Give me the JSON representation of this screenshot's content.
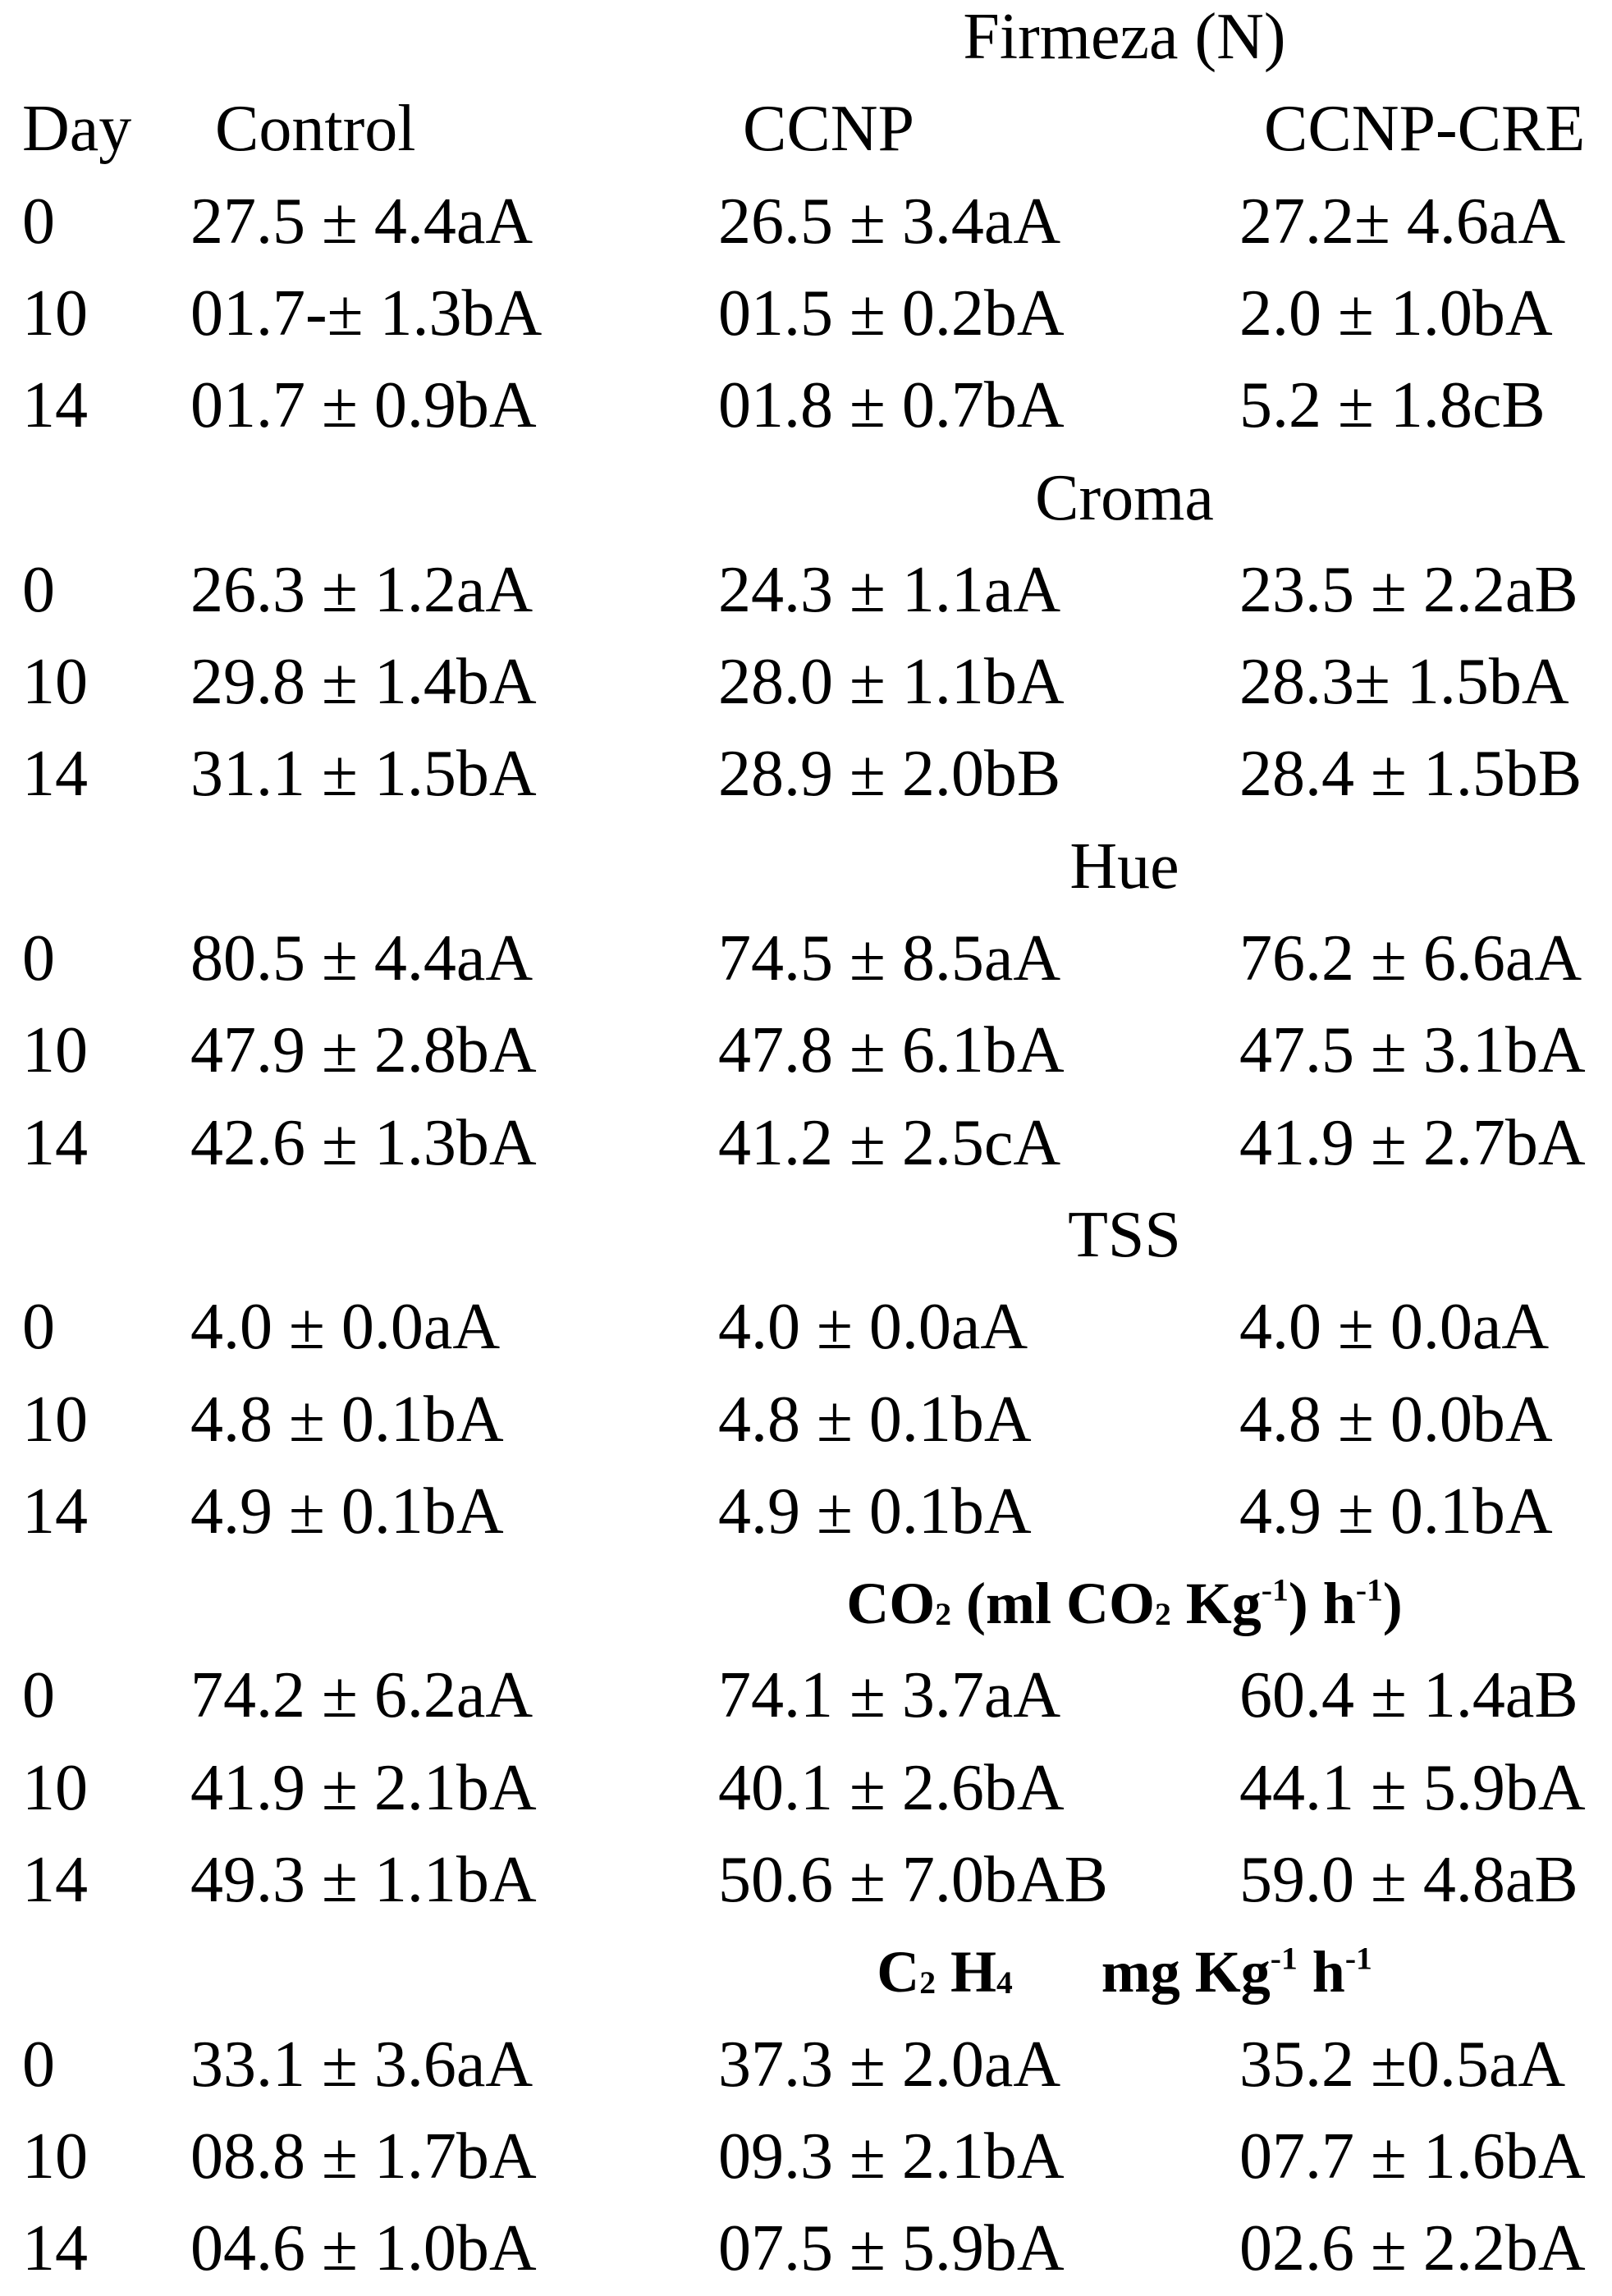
{
  "columns": [
    "Day",
    "Control",
    "CCNP",
    "CCNP-CRE"
  ],
  "sections": [
    {
      "title_parts": [
        {
          "text": "Firmeza (N)",
          "pos": "base"
        }
      ],
      "bold": false,
      "rows": [
        [
          "0",
          "27.5 ± 4.4aA",
          "26.5 ± 3.4aA",
          "27.2± 4.6aA"
        ],
        [
          "10",
          "01.7-± 1.3bA",
          "01.5 ± 0.2bA",
          "2.0 ± 1.0bA"
        ],
        [
          "14",
          "01.7 ± 0.9bA",
          "01.8 ± 0.7bA",
          "5.2 ± 1.8cB"
        ]
      ]
    },
    {
      "title_parts": [
        {
          "text": "Croma",
          "pos": "base"
        }
      ],
      "bold": false,
      "rows": [
        [
          "0",
          "26.3 ± 1.2aA",
          "24.3 ± 1.1aA",
          "23.5 ± 2.2aB"
        ],
        [
          "10",
          "29.8 ± 1.4bA",
          "28.0 ± 1.1bA",
          "28.3± 1.5bA"
        ],
        [
          "14",
          "31.1 ± 1.5bA",
          "28.9 ± 2.0bB",
          "28.4 ± 1.5bB"
        ]
      ]
    },
    {
      "title_parts": [
        {
          "text": "Hue",
          "pos": "base"
        }
      ],
      "bold": false,
      "rows": [
        [
          "0",
          "80.5 ± 4.4aA",
          "74.5 ± 8.5aA",
          "76.2 ± 6.6aA"
        ],
        [
          "10",
          "47.9 ± 2.8bA",
          "47.8 ± 6.1bA",
          "47.5 ± 3.1bA"
        ],
        [
          "14",
          "42.6 ± 1.3bA",
          "41.2 ± 2.5cA",
          "41.9 ± 2.7bA"
        ]
      ]
    },
    {
      "title_parts": [
        {
          "text": "TSS",
          "pos": "base"
        }
      ],
      "bold": false,
      "rows": [
        [
          "0",
          "4.0 ± 0.0aA",
          "4.0 ± 0.0aA",
          "4.0 ± 0.0aA"
        ],
        [
          "10",
          "4.8 ± 0.1bA",
          "4.8 ± 0.1bA",
          "4.8 ± 0.0bA"
        ],
        [
          "14",
          "4.9 ± 0.1bA",
          "4.9 ± 0.1bA",
          "4.9 ± 0.1bA"
        ]
      ]
    },
    {
      "title_parts": [
        {
          "text": "CO",
          "pos": "base"
        },
        {
          "text": "2",
          "pos": "sub"
        },
        {
          "text": " (ml CO",
          "pos": "base"
        },
        {
          "text": "2",
          "pos": "sub"
        },
        {
          "text": " Kg",
          "pos": "base"
        },
        {
          "text": "-1",
          "pos": "sup"
        },
        {
          "text": ") h",
          "pos": "base"
        },
        {
          "text": "-1",
          "pos": "sup"
        },
        {
          "text": ")",
          "pos": "base"
        }
      ],
      "bold": true,
      "rows": [
        [
          "0",
          "74.2 ± 6.2aA",
          "74.1 ± 3.7aA",
          "60.4 ± 1.4aB"
        ],
        [
          "10",
          "41.9 ± 2.1bA",
          "40.1 ± 2.6bA",
          "44.1 ± 5.9bA"
        ],
        [
          "14",
          "49.3 ± 1.1bA",
          "50.6 ± 7.0bAB",
          "59.0 ± 4.8aB"
        ]
      ]
    },
    {
      "title_parts": [
        {
          "text": "C",
          "pos": "base"
        },
        {
          "text": "2",
          "pos": "sub"
        },
        {
          "text": " H",
          "pos": "base"
        },
        {
          "text": "4",
          "pos": "sub"
        },
        {
          "text": "      mg Kg",
          "pos": "base"
        },
        {
          "text": "-1",
          "pos": "sup"
        },
        {
          "text": " h",
          "pos": "base"
        },
        {
          "text": "-1",
          "pos": "sup"
        }
      ],
      "bold": true,
      "rows": [
        [
          "0",
          "33.1 ± 3.6aA",
          "37.3 ± 2.0aA",
          "35.2 ±0.5aA"
        ],
        [
          "10",
          "08.8 ± 1.7bA",
          "09.3 ± 2.1bA",
          "07.7 ± 1.6bA"
        ],
        [
          "14",
          "04.6 ± 1.0bA",
          "07.5 ± 5.9bA",
          "02.6 ± 2.2bA"
        ]
      ]
    }
  ]
}
